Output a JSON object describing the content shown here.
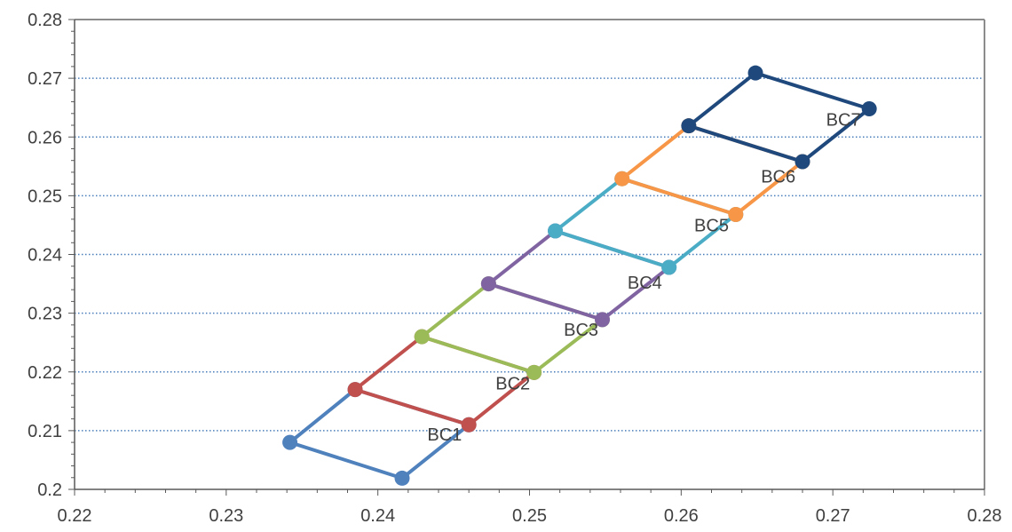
{
  "chart_data": {
    "type": "scatter",
    "xlim": [
      0.22,
      0.28
    ],
    "ylim": [
      0.2,
      0.28
    ],
    "x_ticks": [
      "0.22",
      "0.23",
      "0.24",
      "0.25",
      "0.26",
      "0.27",
      "0.28"
    ],
    "y_ticks": [
      "0.2",
      "0.21",
      "0.22",
      "0.23",
      "0.24",
      "0.25",
      "0.26",
      "0.27",
      "0.28"
    ],
    "grid": "horizontal-dotted",
    "series": [
      {
        "name": "BC1",
        "color": "#4f81bd",
        "points": [
          [
            0.2342,
            0.208
          ],
          [
            0.2385,
            0.217
          ],
          [
            0.246,
            0.211
          ],
          [
            0.2416,
            0.2019
          ],
          [
            0.2342,
            0.208
          ]
        ]
      },
      {
        "name": "BC2",
        "color": "#c0504d",
        "points": [
          [
            0.2385,
            0.217
          ],
          [
            0.2429,
            0.226
          ],
          [
            0.2503,
            0.2199
          ],
          [
            0.246,
            0.211
          ],
          [
            0.2385,
            0.217
          ]
        ]
      },
      {
        "name": "BC3",
        "color": "#9bbb59",
        "points": [
          [
            0.2429,
            0.226
          ],
          [
            0.2473,
            0.235
          ],
          [
            0.2548,
            0.2289
          ],
          [
            0.2503,
            0.2199
          ],
          [
            0.2429,
            0.226
          ]
        ]
      },
      {
        "name": "BC4",
        "color": "#8064a2",
        "points": [
          [
            0.2473,
            0.235
          ],
          [
            0.2517,
            0.244
          ],
          [
            0.2592,
            0.2378
          ],
          [
            0.2548,
            0.2289
          ],
          [
            0.2473,
            0.235
          ]
        ]
      },
      {
        "name": "BC5",
        "color": "#4bacc6",
        "points": [
          [
            0.2517,
            0.244
          ],
          [
            0.2561,
            0.2529
          ],
          [
            0.2636,
            0.2468
          ],
          [
            0.2592,
            0.2378
          ],
          [
            0.2517,
            0.244
          ]
        ]
      },
      {
        "name": "BC6",
        "color": "#f79646",
        "points": [
          [
            0.2561,
            0.2529
          ],
          [
            0.2605,
            0.2619
          ],
          [
            0.268,
            0.2558
          ],
          [
            0.2636,
            0.2468
          ],
          [
            0.2561,
            0.2529
          ]
        ]
      },
      {
        "name": "BC7",
        "color": "#1f497d",
        "points": [
          [
            0.2605,
            0.2619
          ],
          [
            0.2649,
            0.2709
          ],
          [
            0.2724,
            0.2648
          ],
          [
            0.268,
            0.2558
          ],
          [
            0.2605,
            0.2619
          ]
        ]
      }
    ],
    "annotations": [
      {
        "text": "BC1",
        "x": 0.2444,
        "y": 0.2094
      },
      {
        "text": "BC2",
        "x": 0.2489,
        "y": 0.2181
      },
      {
        "text": "BC3",
        "x": 0.2534,
        "y": 0.2272
      },
      {
        "text": "BC4",
        "x": 0.2576,
        "y": 0.2352
      },
      {
        "text": "BC5",
        "x": 0.262,
        "y": 0.245
      },
      {
        "text": "BC6",
        "x": 0.2664,
        "y": 0.2533
      },
      {
        "text": "BC7",
        "x": 0.2707,
        "y": 0.263
      }
    ]
  }
}
